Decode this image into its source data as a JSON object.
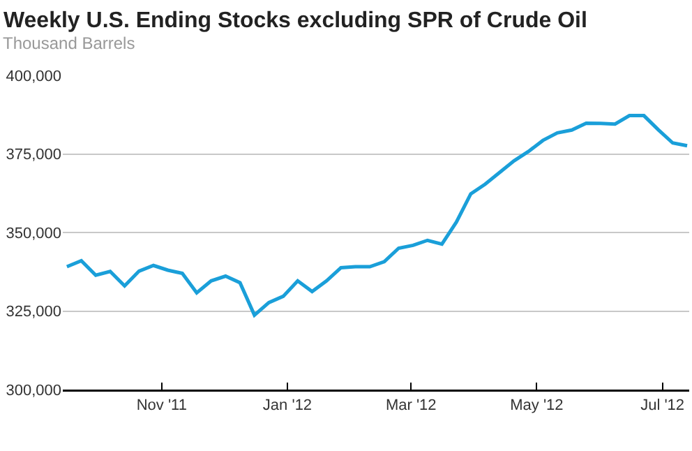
{
  "chart_data": {
    "type": "line",
    "title": "Weekly U.S. Ending Stocks excluding SPR of Crude Oil",
    "ylabel": "Thousand Barrels",
    "x": [
      "2011-09-16",
      "2011-09-23",
      "2011-09-30",
      "2011-10-07",
      "2011-10-14",
      "2011-10-21",
      "2011-10-28",
      "2011-11-04",
      "2011-11-11",
      "2011-11-18",
      "2011-11-25",
      "2011-12-02",
      "2011-12-09",
      "2011-12-16",
      "2011-12-23",
      "2011-12-30",
      "2012-01-06",
      "2012-01-13",
      "2012-01-20",
      "2012-01-27",
      "2012-02-03",
      "2012-02-10",
      "2012-02-17",
      "2012-02-24",
      "2012-03-02",
      "2012-03-09",
      "2012-03-16",
      "2012-03-23",
      "2012-03-30",
      "2012-04-06",
      "2012-04-13",
      "2012-04-20",
      "2012-04-27",
      "2012-05-04",
      "2012-05-11",
      "2012-05-18",
      "2012-05-25",
      "2012-06-01",
      "2012-06-08",
      "2012-06-15",
      "2012-06-22",
      "2012-06-29",
      "2012-07-06",
      "2012-07-13"
    ],
    "series": [
      {
        "color": "#1a9fd9",
        "values": [
          339100,
          341000,
          336400,
          337600,
          333000,
          337700,
          339500,
          338000,
          337000,
          330800,
          334600,
          336100,
          334000,
          323700,
          327700,
          329700,
          334600,
          331200,
          334600,
          338800,
          339100,
          339100,
          340700,
          345000,
          345900,
          347500,
          346300,
          353300,
          362300,
          365400,
          369100,
          372800,
          375800,
          379300,
          381700,
          382600,
          384800,
          384700,
          384500,
          387200,
          387200,
          382700,
          378500,
          377600
        ]
      }
    ],
    "xlim": [
      "2011-09-14",
      "2012-07-14"
    ],
    "xticks": [
      {
        "value": "2011-11-01",
        "label": "Nov '11"
      },
      {
        "value": "2012-01-01",
        "label": "Jan '12"
      },
      {
        "value": "2012-03-01",
        "label": "Mar '12"
      },
      {
        "value": "2012-05-01",
        "label": "May '12"
      },
      {
        "value": "2012-07-01",
        "label": "Jul '12"
      }
    ],
    "ylim": [
      300000,
      400000
    ],
    "yticks": [
      {
        "value": 300000,
        "label": "300,000"
      },
      {
        "value": 325000,
        "label": "325,000"
      },
      {
        "value": 350000,
        "label": "350,000"
      },
      {
        "value": 375000,
        "label": "375,000"
      },
      {
        "value": 400000,
        "label": "400,000"
      }
    ],
    "grid": "y",
    "marker": "none",
    "line_style": "solid"
  }
}
